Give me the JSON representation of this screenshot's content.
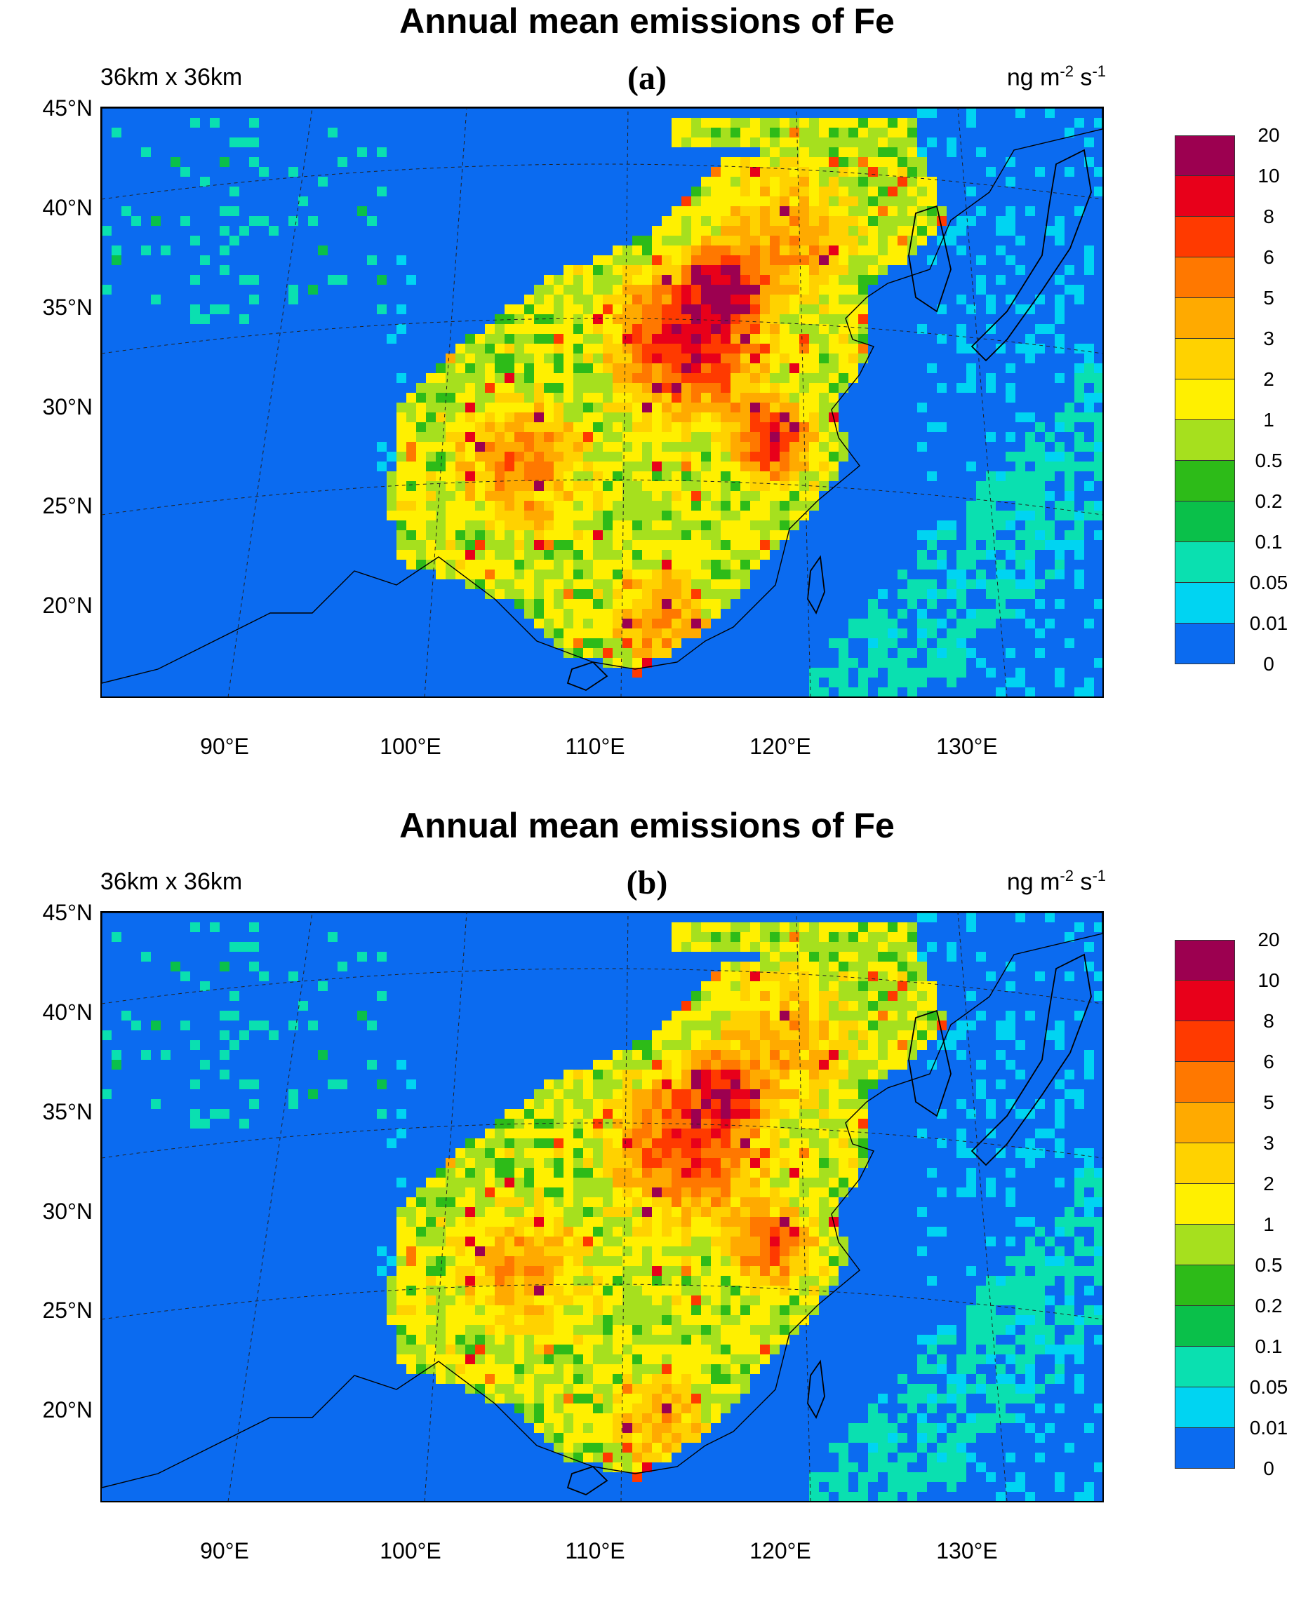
{
  "panels": [
    {
      "id": "a",
      "title": "Annual mean emissions of Fe",
      "tag": "(a)",
      "resolution": "36km x 36km",
      "units_main": "ng m",
      "units_exp1": "-2",
      "units_mid": " s",
      "units_exp2": "-1",
      "high_intensity": 1.0
    },
    {
      "id": "b",
      "title": "Annual mean emissions of Fe",
      "tag": "(b)",
      "resolution": "36km x 36km",
      "units_main": "ng m",
      "units_exp1": "-2",
      "units_mid": " s",
      "units_exp2": "-1",
      "high_intensity": 0.82
    }
  ],
  "lat_labels": [
    "45°N",
    "40°N",
    "35°N",
    "30°N",
    "25°N",
    "20°N"
  ],
  "lon_labels": [
    "90°E",
    "100°E",
    "110°E",
    "120°E",
    "130°E"
  ],
  "colorbar": {
    "levels": [
      "20",
      "10",
      "8",
      "6",
      "5",
      "3",
      "2",
      "1",
      "0.5",
      "0.2",
      "0.1",
      "0.05",
      "0.01",
      "0"
    ],
    "colors": [
      "#9c0050",
      "#e8001a",
      "#ff3a00",
      "#ff7800",
      "#ffaa00",
      "#ffd200",
      "#fff000",
      "#a6e01e",
      "#2dbb18",
      "#0ac04a",
      "#0ae0b0",
      "#00d4f2",
      "#0b6bf0"
    ]
  },
  "palette": {
    "ocean": "#0b6bf0"
  }
}
